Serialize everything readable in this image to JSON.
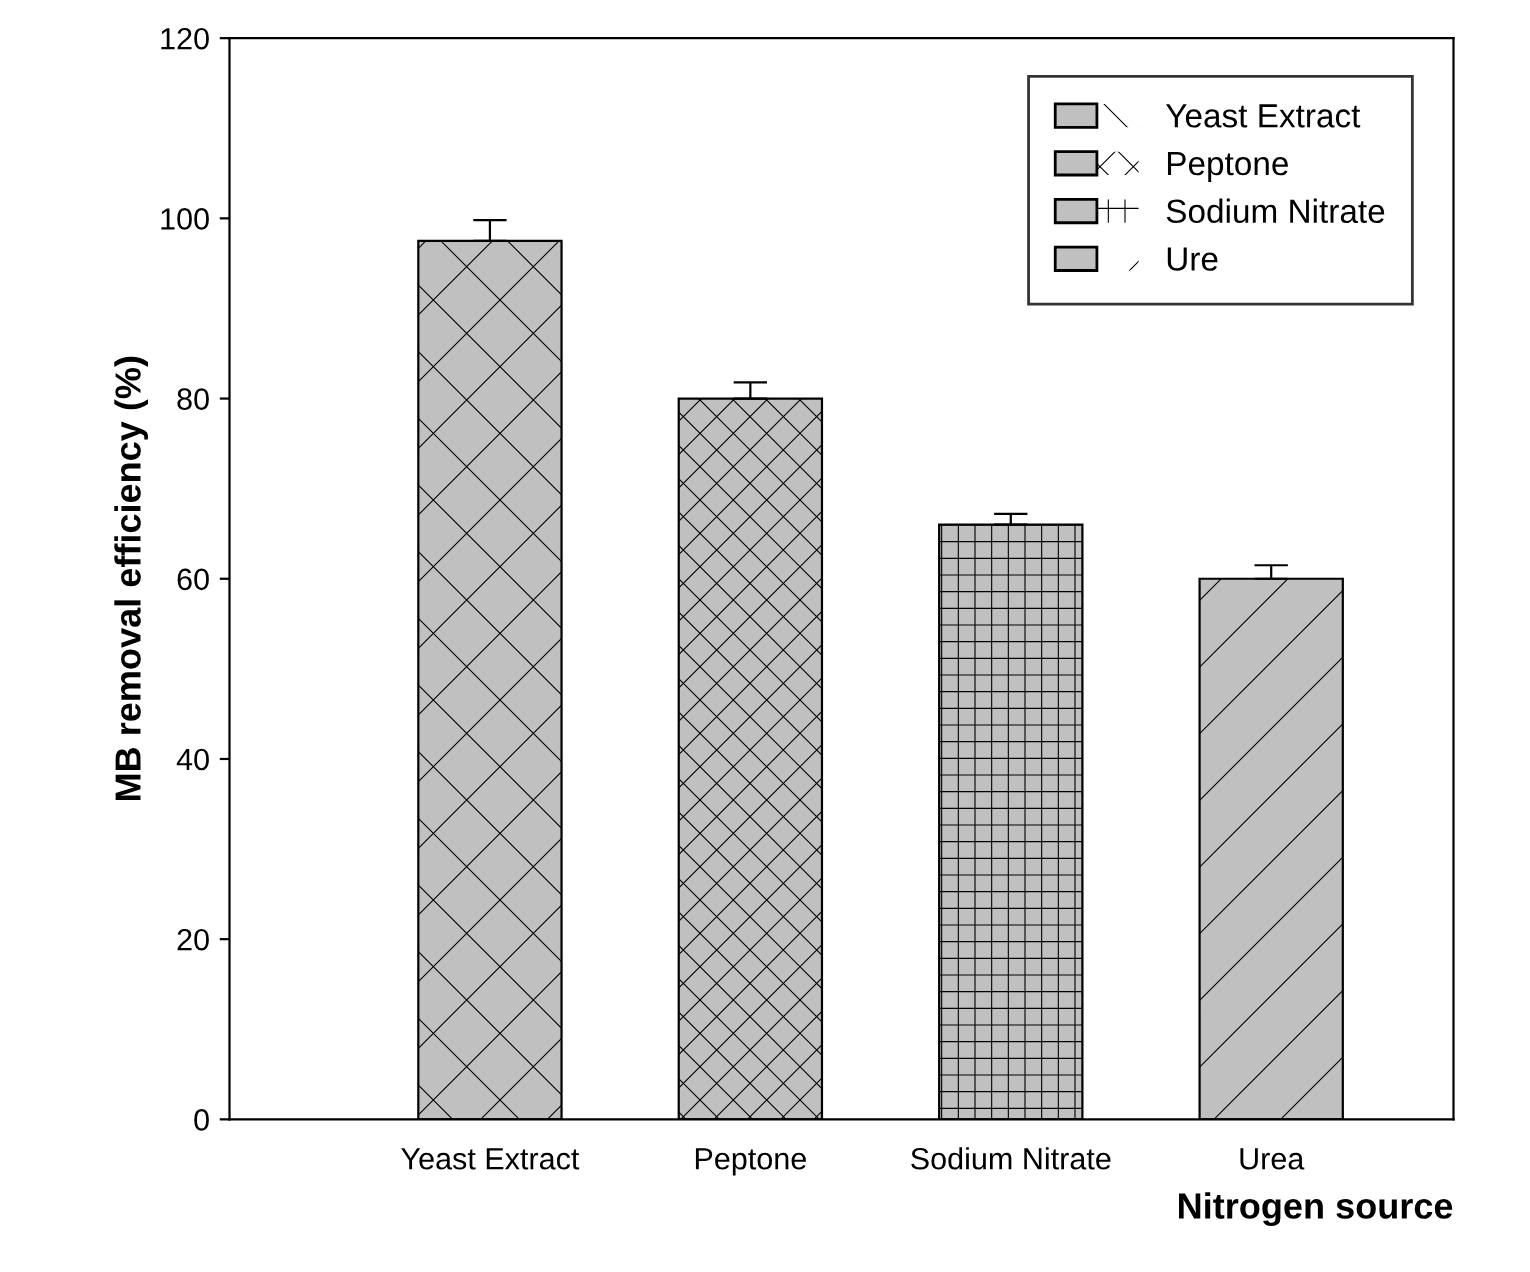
{
  "chart_data": {
    "type": "bar",
    "ylabel": "MB removal efficiency (%)",
    "xlabel": "Nitrogen source",
    "categories": [
      "Yeast Extract",
      "Peptone",
      "Sodium Nitrate",
      "Urea"
    ],
    "series": [
      {
        "name": "Yeast Extract",
        "color": "#c0c0c0",
        "values": [
          97.5,
          null,
          null,
          null
        ],
        "errors": [
          [
            97.5,
            99.8
          ],
          null,
          null,
          null
        ]
      },
      {
        "name": "Peptone",
        "color": "#c0c0c0",
        "values": [
          null,
          80,
          null,
          null
        ],
        "errors": [
          null,
          [
            80,
            81.8
          ],
          null,
          null
        ]
      },
      {
        "name": "Sodium Nitrate",
        "color": "#c0c0c0",
        "values": [
          null,
          null,
          66,
          null
        ],
        "errors": [
          null,
          null,
          [
            66,
            67.2
          ],
          null
        ]
      },
      {
        "name": "Ure",
        "color": "#c0c0c0",
        "values": [
          null,
          null,
          null,
          60
        ],
        "errors": [
          null,
          null,
          null,
          [
            60,
            61.5
          ]
        ]
      }
    ],
    "ylim": [
      0,
      120
    ],
    "yticks": [
      0,
      20,
      40,
      60,
      80,
      100,
      120
    ],
    "grid": false,
    "legend": "top right"
  }
}
